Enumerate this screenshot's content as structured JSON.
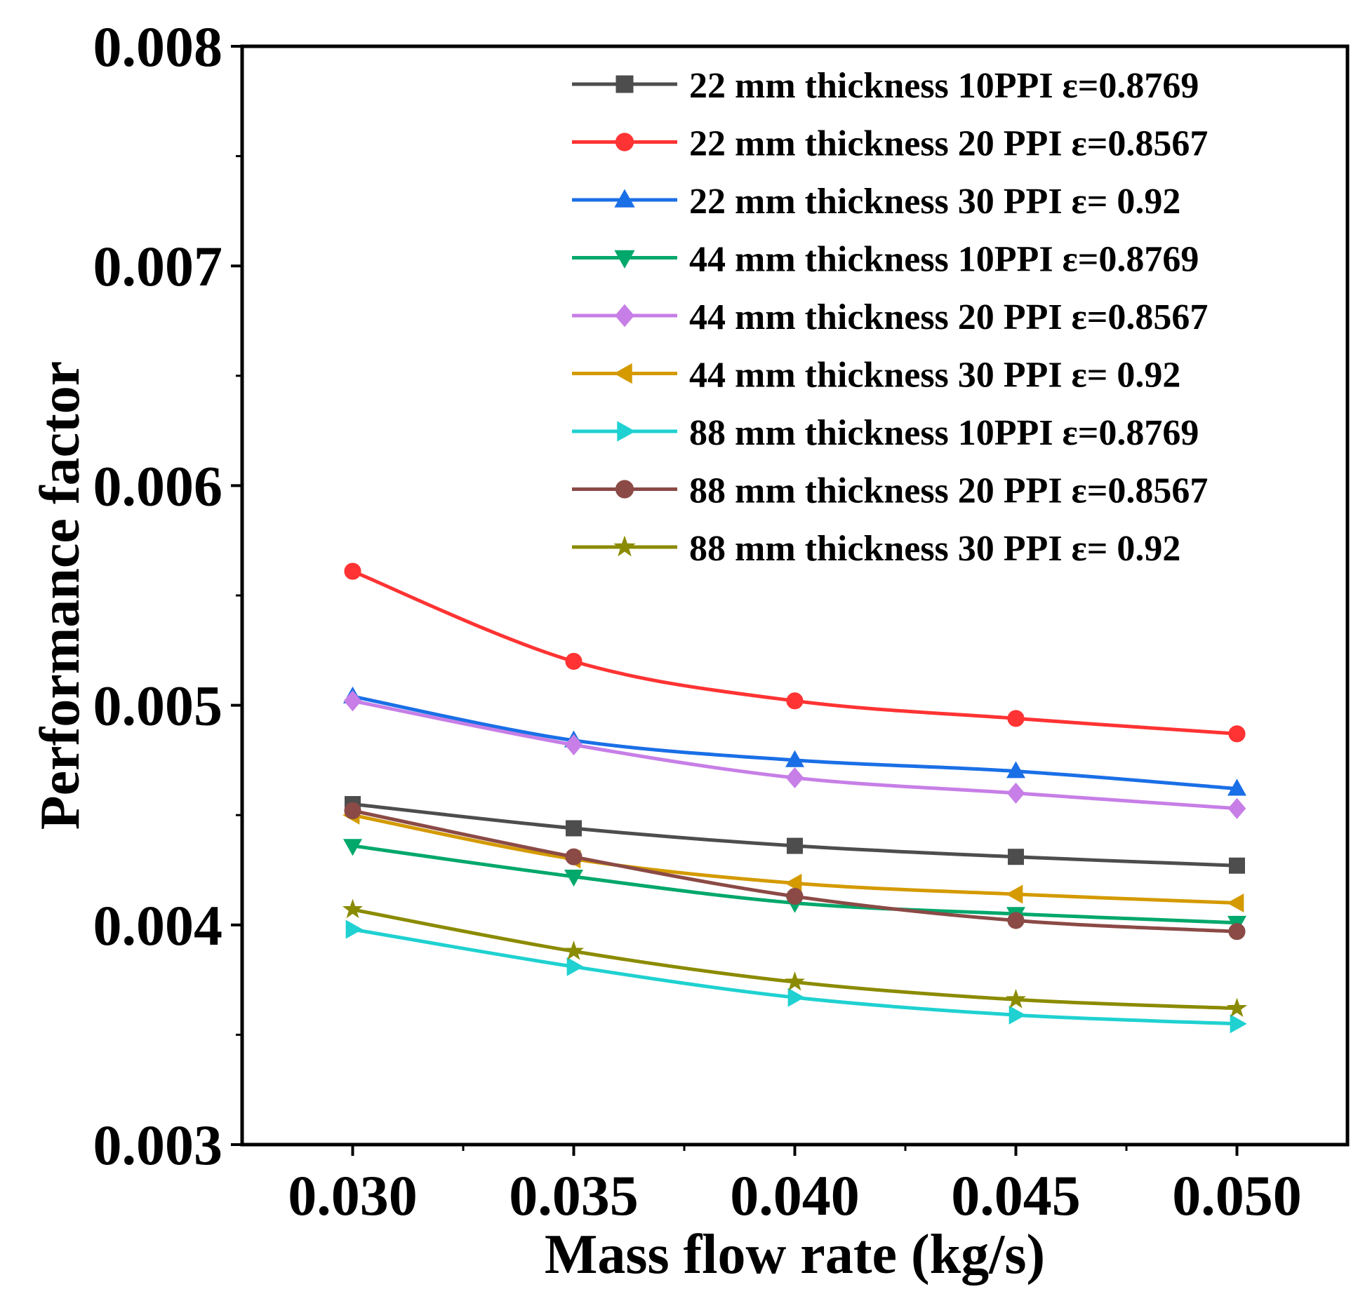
{
  "chart_data": {
    "type": "line",
    "title": "",
    "xlabel": "Mass flow rate (kg/s)",
    "ylabel": "Performance factor",
    "x": [
      0.03,
      0.035,
      0.04,
      0.045,
      0.05
    ],
    "x_tick_labels": [
      "0.030",
      "0.035",
      "0.040",
      "0.045",
      "0.050"
    ],
    "y_tick_values": [
      0.003,
      0.004,
      0.005,
      0.006,
      0.007,
      0.008
    ],
    "y_tick_labels": [
      "0.003",
      "0.004",
      "0.005",
      "0.006",
      "0.007",
      "0.008"
    ],
    "xlim": [
      0.0275,
      0.0525
    ],
    "ylim": [
      0.003,
      0.008
    ],
    "grid": false,
    "legend_position": "top-right",
    "series": [
      {
        "name": "22 mm thickness 10PPI ε=0.8769",
        "color": "#4d4d4d",
        "marker": "square",
        "values": [
          0.00455,
          0.00444,
          0.00436,
          0.00431,
          0.00427
        ]
      },
      {
        "name": "22 mm thickness 20 PPI ε=0.8567",
        "color": "#ff3333",
        "marker": "circle",
        "values": [
          0.00561,
          0.0052,
          0.00502,
          0.00494,
          0.00487
        ]
      },
      {
        "name": "22 mm thickness 30 PPI ε= 0.92",
        "color": "#1a6fe6",
        "marker": "triangle-up",
        "values": [
          0.00504,
          0.00484,
          0.00475,
          0.0047,
          0.00462
        ]
      },
      {
        "name": "44 mm thickness 10PPI ε=0.8769",
        "color": "#00a86b",
        "marker": "triangle-down",
        "values": [
          0.00436,
          0.00422,
          0.0041,
          0.00405,
          0.00401
        ]
      },
      {
        "name": "44 mm thickness 20 PPI ε=0.8567",
        "color": "#c77ee6",
        "marker": "diamond",
        "values": [
          0.00502,
          0.00482,
          0.00467,
          0.0046,
          0.00453
        ]
      },
      {
        "name": "44 mm thickness 30 PPI ε= 0.92",
        "color": "#d49a00",
        "marker": "triangle-left",
        "values": [
          0.0045,
          0.0043,
          0.00419,
          0.00414,
          0.0041
        ]
      },
      {
        "name": "88 mm thickness 10PPI ε=0.8769",
        "color": "#1fd1d1",
        "marker": "triangle-right",
        "values": [
          0.00398,
          0.00381,
          0.00367,
          0.00359,
          0.00355
        ]
      },
      {
        "name": "88 mm thickness 20 PPI ε=0.8567",
        "color": "#8b4a46",
        "marker": "circle",
        "values": [
          0.00452,
          0.00431,
          0.00413,
          0.00402,
          0.00397
        ]
      },
      {
        "name": "88 mm thickness 30 PPI ε= 0.92",
        "color": "#8b8b00",
        "marker": "star",
        "values": [
          0.00407,
          0.00388,
          0.00374,
          0.00366,
          0.00362
        ]
      }
    ]
  }
}
